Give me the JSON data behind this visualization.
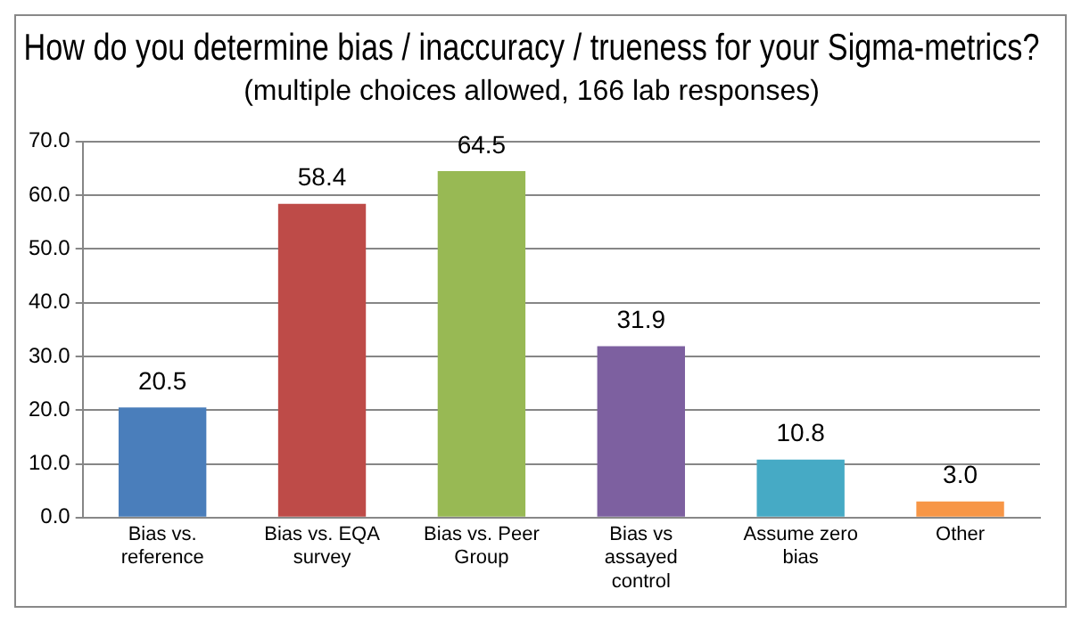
{
  "chart_data": {
    "type": "bar",
    "title": "How do you determine bias / inaccuracy / trueness for your Sigma-metrics?",
    "subtitle": "(multiple choices allowed, 166 lab responses)",
    "categories": [
      "Bias vs. reference",
      "Bias vs. EQA survey",
      "Bias vs. Peer Group",
      "Bias vs assayed control",
      "Assume zero bias",
      "Other"
    ],
    "values": [
      20.5,
      58.4,
      64.5,
      31.9,
      10.8,
      3.0
    ],
    "colors": [
      "#4a7ebb",
      "#be4b48",
      "#98b954",
      "#7d60a0",
      "#46aac5",
      "#f79646"
    ],
    "ylim": [
      0,
      70
    ],
    "yticks": [
      {
        "value": 0,
        "label": "0.0"
      },
      {
        "value": 10,
        "label": "10.0"
      },
      {
        "value": 20,
        "label": "20.0"
      },
      {
        "value": 30,
        "label": "30.0"
      },
      {
        "value": 40,
        "label": "40.0"
      },
      {
        "value": 50,
        "label": "50.0"
      },
      {
        "value": 60,
        "label": "60.0"
      },
      {
        "value": 70,
        "label": "70.0"
      }
    ],
    "value_labels": [
      "20.5",
      "58.4",
      "64.5",
      "31.9",
      "10.8",
      "3.0"
    ],
    "grid": "y",
    "legend": false
  }
}
